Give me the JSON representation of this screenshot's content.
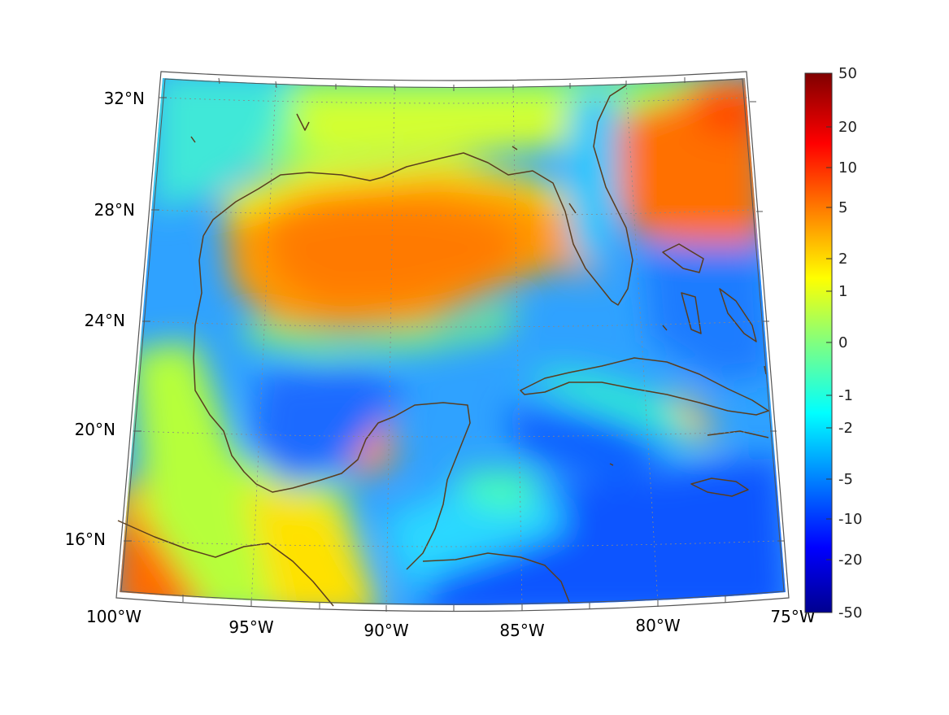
{
  "map": {
    "lat_labels": [
      "32°N",
      "28°N",
      "24°N",
      "20°N",
      "16°N"
    ],
    "lon_labels": [
      "100°W",
      "95°W",
      "90°W",
      "85°W",
      "80°W",
      "75°W"
    ]
  },
  "colorbar": {
    "tick_labels": [
      "50",
      "20",
      "10",
      "5",
      "2",
      "1",
      "0",
      "-1",
      "-2",
      "-5",
      "-10",
      "-20",
      "-50"
    ],
    "colormap": "jet",
    "colors": {
      "top": "#800000",
      "bottom": "#00008f"
    }
  },
  "styles": {
    "coastline_color": "#5a3d1e",
    "frame_color": "#555555",
    "grid_color": "#888888"
  }
}
